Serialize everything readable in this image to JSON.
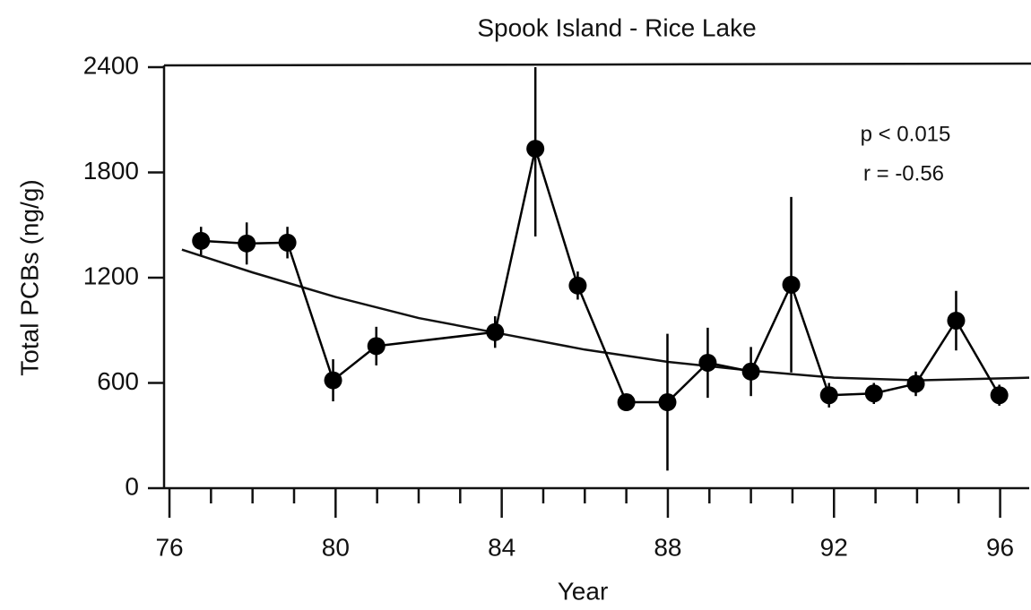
{
  "chart_data": {
    "type": "line",
    "title": "Spook Island - Rice Lake",
    "x_label": "Year",
    "y_label": "Total PCBs (ng/g)",
    "annotations": [
      "p < 0.015",
      "r = -0.56"
    ],
    "x": [
      76.76,
      77.86,
      78.84,
      79.94,
      80.98,
      83.84,
      84.81,
      85.83,
      87.0,
      87.99,
      88.96,
      90.0,
      90.97,
      91.88,
      92.96,
      93.97,
      94.94,
      95.98
    ],
    "series": [
      {
        "color": "#000000",
        "values": [
          1410,
          1395,
          1400,
          615,
          810,
          890,
          1935,
          1155,
          490,
          490,
          715,
          665,
          1160,
          530,
          540,
          595,
          955,
          530
        ],
        "errors": [
          80,
          120,
          90,
          120,
          110,
          90,
          500,
          80,
          20,
          390,
          200,
          140,
          500,
          70,
          60,
          70,
          170,
          60
        ]
      }
    ],
    "fit": {
      "x": [
        76.3,
        78,
        80,
        82,
        84,
        86,
        88,
        90,
        92,
        94,
        96.7
      ],
      "values": [
        1360,
        1230,
        1090,
        970,
        880,
        790,
        720,
        670,
        630,
        615,
        630
      ]
    },
    "xlim": [
      75.87,
      96.7
    ],
    "ylim": [
      0,
      2400
    ],
    "xticks": [
      76,
      80,
      84,
      88,
      92,
      96
    ],
    "xminor_ticks": [
      77,
      78,
      79,
      81,
      82,
      83,
      85,
      86,
      87,
      89,
      90,
      91,
      93,
      94,
      95
    ],
    "yticks": [
      0,
      600,
      1200,
      1800,
      2400
    ]
  }
}
